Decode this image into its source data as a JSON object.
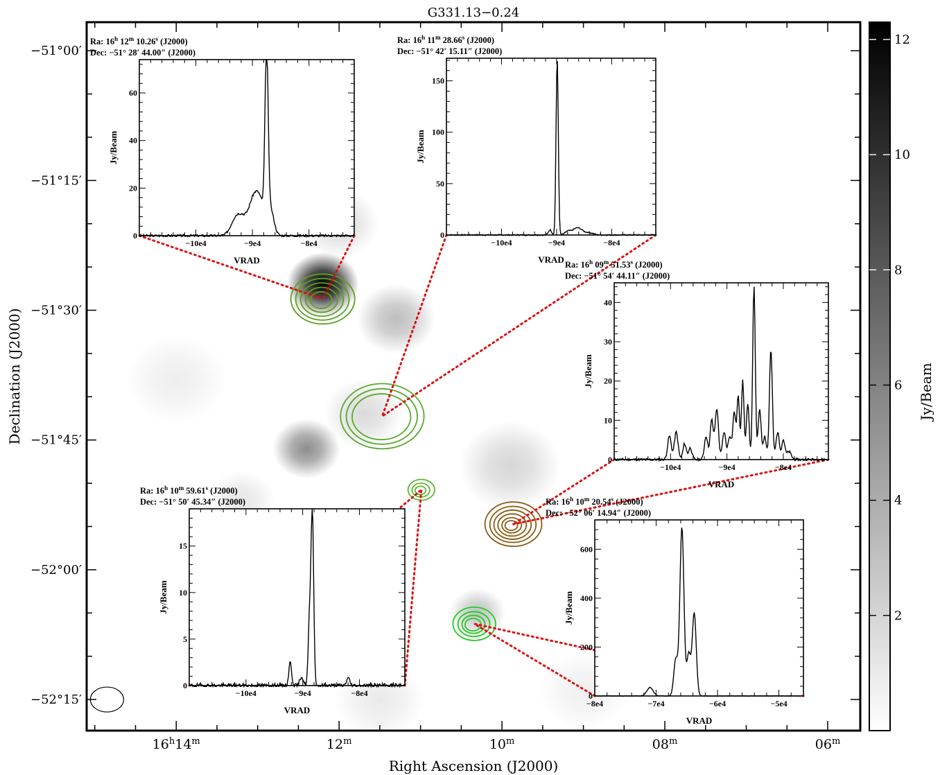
{
  "chart_data": {
    "type": "heatmap",
    "title": "G331.13−0.24",
    "xlabel": "Right Ascension (J2000)",
    "ylabel": "Declination (J2000)",
    "colorbar": {
      "label": "Jy/Beam",
      "ticks": [
        "2",
        "4",
        "6",
        "8",
        "10",
        "12"
      ],
      "tick_values": [
        2,
        4,
        6,
        8,
        10,
        12
      ],
      "range": [
        0,
        12.3
      ],
      "colormap": "white-to-black"
    },
    "x_ticks": [
      {
        "main": "16",
        "sup1": "h",
        "mid": "14",
        "sup2": "m",
        "ra_min": 14
      },
      {
        "main": "12",
        "sup1": "m",
        "mid": "",
        "sup2": "",
        "ra_min": 12
      },
      {
        "main": "10",
        "sup1": "m",
        "mid": "",
        "sup2": "",
        "ra_min": 10
      },
      {
        "main": "08",
        "sup1": "m",
        "mid": "",
        "sup2": "",
        "ra_min": 8
      },
      {
        "main": "06",
        "sup1": "m",
        "mid": "",
        "sup2": "",
        "ra_min": 6
      }
    ],
    "xlim_ra_minutes": [
      15.1,
      5.6
    ],
    "y_ticks": [
      {
        "label": "−51°00′",
        "dec_min": 0
      },
      {
        "label": "−51°15′",
        "dec_min": -15
      },
      {
        "label": "−51°30′",
        "dec_min": -30
      },
      {
        "label": "−51°45′",
        "dec_min": -45
      },
      {
        "label": "−52°00′",
        "dec_min": -60
      },
      {
        "label": "−52°15′",
        "dec_min": -75
      }
    ],
    "ylim_dec_minutes": [
      -78.6,
      3.3
    ],
    "emission_blobs": [
      {
        "ra_min": 12.2,
        "dec_min": -27,
        "peak": 12.3,
        "spread": 3.2
      },
      {
        "ra_min": 11.3,
        "dec_min": -31,
        "peak": 3.2,
        "spread": 3.5
      },
      {
        "ra_min": 12.4,
        "dec_min": -46,
        "peak": 5.5,
        "spread": 3.0
      },
      {
        "ra_min": 11.7,
        "dec_min": -42,
        "peak": 1.8,
        "spread": 3.5
      },
      {
        "ra_min": 9.9,
        "dec_min": -48,
        "peak": 2.0,
        "spread": 4.5
      },
      {
        "ra_min": 10.3,
        "dec_min": -65,
        "peak": 3.0,
        "spread": 2.5
      },
      {
        "ra_min": 12.2,
        "dec_min": -62,
        "peak": 1.5,
        "spread": 2.5
      },
      {
        "ra_min": 12.0,
        "dec_min": -20,
        "peak": 1.8,
        "spread": 3.5
      },
      {
        "ra_min": 11.5,
        "dec_min": -75,
        "peak": 1.0,
        "spread": 4.0
      },
      {
        "ra_min": 14.0,
        "dec_min": -38,
        "peak": 0.8,
        "spread": 4.5
      },
      {
        "ra_min": 7.0,
        "dec_min": -42,
        "peak": 0.6,
        "spread": 5.0
      },
      {
        "ra_min": 9.0,
        "dec_min": -74,
        "peak": 0.7,
        "spread": 4.0
      },
      {
        "ra_min": 13.2,
        "dec_min": -52,
        "peak": 1.2,
        "spread": 3.0
      }
    ],
    "sources": [
      {
        "id": "src1",
        "ra_min": 12.2,
        "dec_min": -28.7,
        "color": "#5aa01e"
      },
      {
        "id": "src2",
        "ra_min": 11.47,
        "dec_min": -42.25,
        "color": "#58a82c"
      },
      {
        "id": "src3",
        "ra_min": 9.86,
        "dec_min": -54.73,
        "color": "#8a5a10"
      },
      {
        "id": "src4",
        "ra_min": 10.99,
        "dec_min": -50.76,
        "color": "#5cb830"
      },
      {
        "id": "src5",
        "ra_min": 10.34,
        "dec_min": -66.25,
        "color": "#22cc22"
      }
    ],
    "beam": {
      "ra_min": 14.85,
      "dec_min": -75
    },
    "insets": [
      {
        "id": "inset1",
        "source": "src1",
        "ra_label": "Ra: 16",
        "ra_h": "h",
        "ra_mid": " 12",
        "ra_m": "m",
        "ra_sec": " 10.26",
        "ra_s": "s",
        "ra_tail": " (J2000)",
        "dec_label": "Dec: −51° 28′ 44.00″ (J2000)",
        "ylabel": "Jy/Beam",
        "xlabel": "VRAD",
        "xlim": [
          -110000,
          -72000
        ],
        "ylim": [
          0,
          74
        ],
        "xticks": [
          -100000,
          -90000,
          -80000
        ],
        "xticklabels": [
          "−10e4",
          "−9e4",
          "−8e4"
        ],
        "yticks": [
          0,
          20,
          40,
          60
        ],
        "yticklabels": [
          "0",
          "20",
          "40",
          "60"
        ],
        "noise": 0.5,
        "seed": 3,
        "components": [
          {
            "v": -87500,
            "a": 72,
            "w": 280
          },
          {
            "v": -86800,
            "a": 11,
            "w": 600
          },
          {
            "v": -91800,
            "a": 8,
            "w": 1100
          },
          {
            "v": -90000,
            "a": 10,
            "w": 700
          },
          {
            "v": -89000,
            "a": 12,
            "w": 700
          },
          {
            "v": -88200,
            "a": 6,
            "w": 600
          },
          {
            "v": -93200,
            "a": 4,
            "w": 800
          }
        ]
      },
      {
        "id": "inset2",
        "source": "src2",
        "ra_label": "Ra: 16",
        "ra_h": "h",
        "ra_mid": " 11",
        "ra_m": "m",
        "ra_sec": " 28.66",
        "ra_s": "s",
        "ra_tail": " (J2000)",
        "dec_label": "Dec: −51° 42′ 15.11″ (J2000)",
        "ylabel": "Jy/Beam",
        "xlabel": "VRAD",
        "xlim": [
          -110000,
          -72000
        ],
        "ylim": [
          0,
          172
        ],
        "xticks": [
          -100000,
          -90000,
          -80000
        ],
        "xticklabels": [
          "−10e4",
          "−9e4",
          "−8e4"
        ],
        "yticks": [
          0,
          50,
          100,
          150
        ],
        "yticklabels": [
          "0",
          "50",
          "100",
          "150"
        ],
        "noise": 0.6,
        "seed": 7,
        "components": [
          {
            "v": -89900,
            "a": 172,
            "w": 200
          },
          {
            "v": -91200,
            "a": 5,
            "w": 300
          },
          {
            "v": -86200,
            "a": 7,
            "w": 900
          },
          {
            "v": -88000,
            "a": 3,
            "w": 500
          },
          {
            "v": -84000,
            "a": 2,
            "w": 700
          }
        ]
      },
      {
        "id": "inset3",
        "source": "src3",
        "ra_label": "Ra: 16",
        "ra_h": "h",
        "ra_mid": " 09",
        "ra_m": "m",
        "ra_sec": " 51.53",
        "ra_s": "s",
        "ra_tail": " (J2000)",
        "dec_label": "Dec: −51° 54′ 44.11″ (J2000)",
        "ylabel": "Jy/Beam",
        "xlabel": "VRAD",
        "xlim": [
          -110000,
          -72000
        ],
        "ylim": [
          0,
          45
        ],
        "xticks": [
          -100000,
          -90000,
          -80000
        ],
        "xticklabels": [
          "−10e4",
          "−9e4",
          "−8e4"
        ],
        "yticks": [
          0,
          10,
          20,
          30,
          40
        ],
        "yticklabels": [
          "0",
          "10",
          "20",
          "30",
          "40"
        ],
        "noise": 0.35,
        "seed": 11,
        "components": [
          {
            "v": -85200,
            "a": 44,
            "w": 230
          },
          {
            "v": -82200,
            "a": 28,
            "w": 260
          },
          {
            "v": -87200,
            "a": 20,
            "w": 230
          },
          {
            "v": -88000,
            "a": 16,
            "w": 230
          },
          {
            "v": -86300,
            "a": 14,
            "w": 250
          },
          {
            "v": -84200,
            "a": 13,
            "w": 260
          },
          {
            "v": -91800,
            "a": 13,
            "w": 300
          },
          {
            "v": -92700,
            "a": 10,
            "w": 280
          },
          {
            "v": -88700,
            "a": 12,
            "w": 250
          },
          {
            "v": -89500,
            "a": 6,
            "w": 300
          },
          {
            "v": -90500,
            "a": 7,
            "w": 300
          },
          {
            "v": -93700,
            "a": 6,
            "w": 300
          },
          {
            "v": -96500,
            "a": 3,
            "w": 300
          },
          {
            "v": -99000,
            "a": 7,
            "w": 320
          },
          {
            "v": -100200,
            "a": 6,
            "w": 320
          },
          {
            "v": -83300,
            "a": 6,
            "w": 280
          },
          {
            "v": -81000,
            "a": 7,
            "w": 300
          },
          {
            "v": -80000,
            "a": 5,
            "w": 280
          },
          {
            "v": -97500,
            "a": 4,
            "w": 300
          },
          {
            "v": -79000,
            "a": 2,
            "w": 400
          }
        ]
      },
      {
        "id": "inset4",
        "source": "src4",
        "ra_label": "Ra: 16",
        "ra_h": "h",
        "ra_mid": " 10",
        "ra_m": "m",
        "ra_sec": " 59.61",
        "ra_s": "s",
        "ra_tail": " (J2000)",
        "dec_label": "Dec: −51° 50′ 45.34″ (J2000)",
        "ylabel": "Jy/Beam",
        "xlabel": "VRAD",
        "xlim": [
          -110000,
          -72000
        ],
        "ylim": [
          0,
          19
        ],
        "xticks": [
          -100000,
          -90000,
          -80000
        ],
        "xticklabels": [
          "−10e4",
          "−9e4",
          "−8e4"
        ],
        "yticks": [
          0,
          5,
          10,
          15
        ],
        "yticklabels": [
          "0",
          "5",
          "10",
          "15"
        ],
        "noise": 0.22,
        "seed": 19,
        "components": [
          {
            "v": -88300,
            "a": 19,
            "w": 230
          },
          {
            "v": -88800,
            "a": 7,
            "w": 230
          },
          {
            "v": -92200,
            "a": 2.5,
            "w": 250
          },
          {
            "v": -90200,
            "a": 1,
            "w": 300
          },
          {
            "v": -82000,
            "a": 0.8,
            "w": 300
          }
        ]
      },
      {
        "id": "inset5",
        "source": "src5",
        "ra_label": "Ra: 16",
        "ra_h": "h",
        "ra_mid": " 10",
        "ra_m": "m",
        "ra_sec": " 20.54",
        "ra_s": "s",
        "ra_tail": " (J2000)",
        "dec_label": "Dec: −52° 06′ 14.94″ (J2000)",
        "ylabel": "Jy/Beam",
        "xlabel": "VRAD",
        "xlim": [
          -80000,
          -46000
        ],
        "ylim": [
          0,
          720
        ],
        "xticks": [
          -80000,
          -70000,
          -60000,
          -50000
        ],
        "xticklabels": [
          "−8e4",
          "−7e4",
          "−6e4",
          "−5e4"
        ],
        "yticks": [
          0,
          200,
          400,
          600
        ],
        "yticklabels": [
          "0",
          "200",
          "400",
          "600"
        ],
        "noise": 1.0,
        "seed": 23,
        "components": [
          {
            "v": -65800,
            "a": 690,
            "w": 330
          },
          {
            "v": -63800,
            "a": 340,
            "w": 330
          },
          {
            "v": -66800,
            "a": 150,
            "w": 330
          },
          {
            "v": -64700,
            "a": 170,
            "w": 300
          },
          {
            "v": -71000,
            "a": 35,
            "w": 500
          }
        ]
      }
    ]
  }
}
